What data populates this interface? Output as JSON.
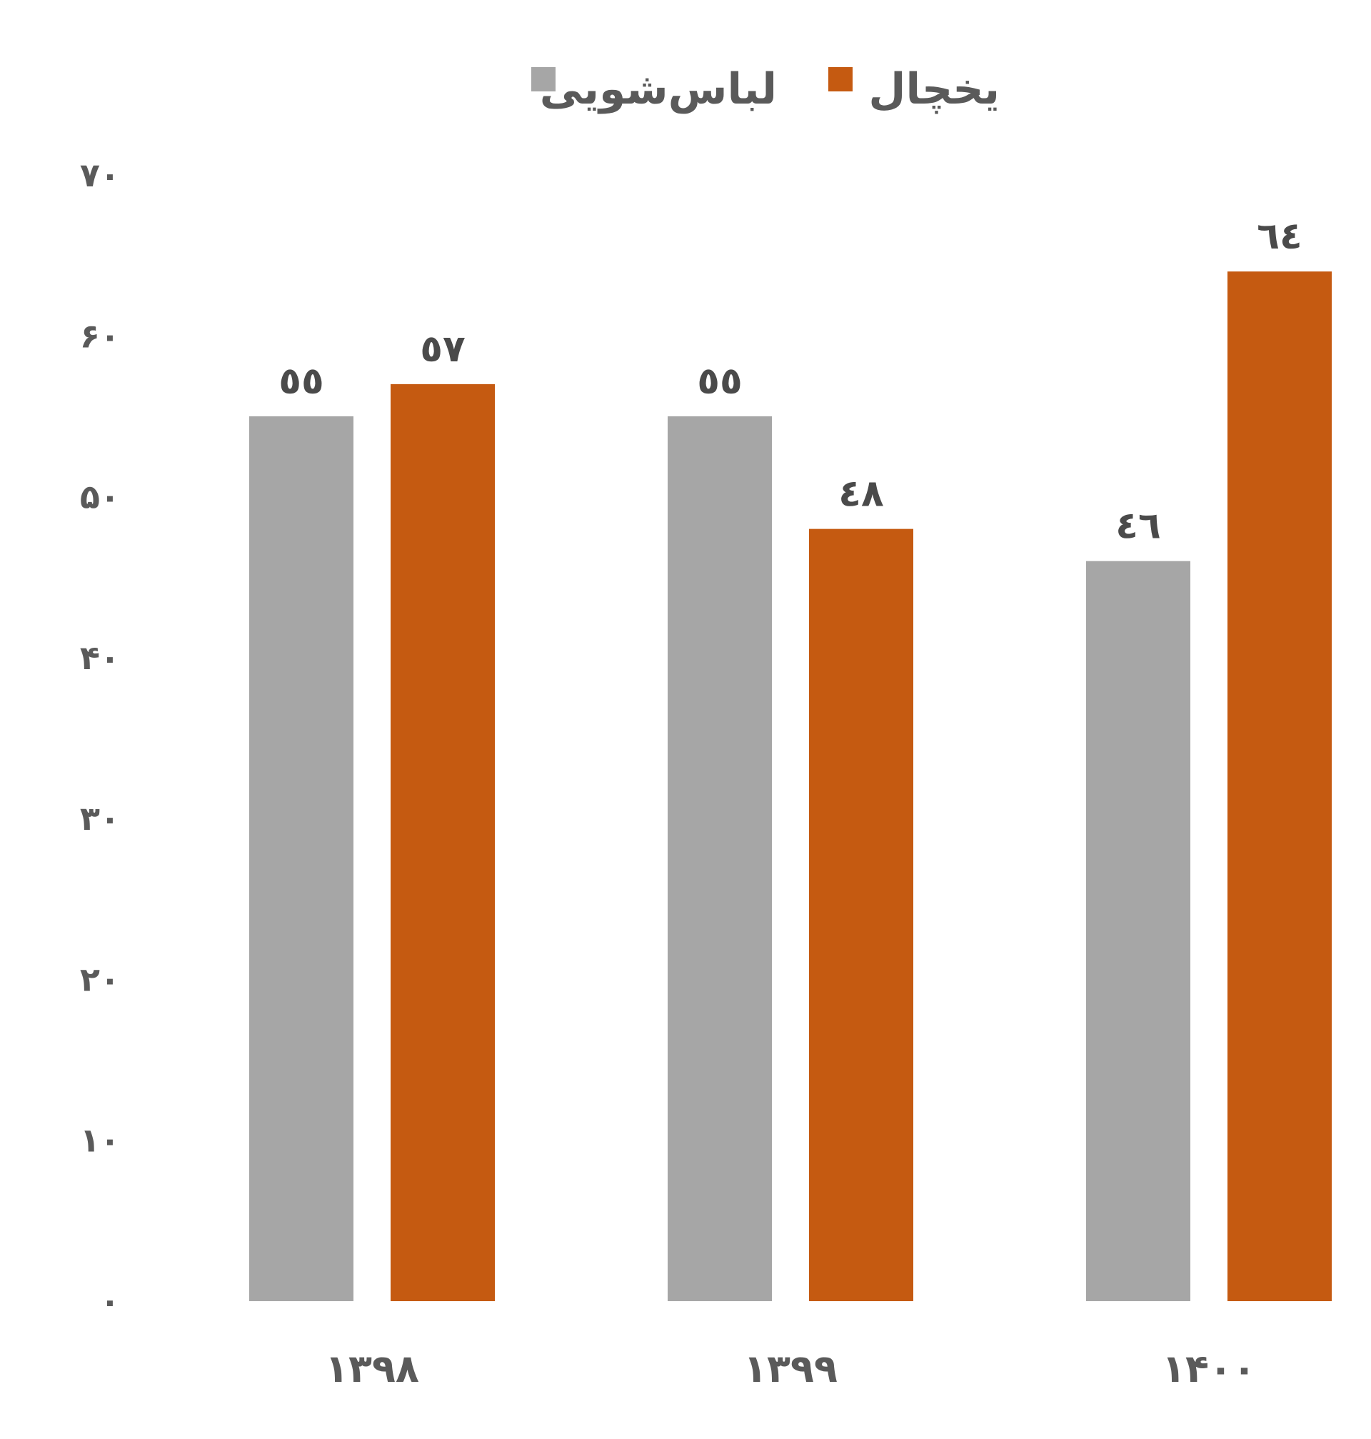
{
  "chart_data": {
    "type": "bar",
    "categories": [
      "۱۳۹۸",
      "۱۳۹۹",
      "۱۴۰۰"
    ],
    "series": [
      {
        "name": "لباس‌شویی",
        "values": [
          55,
          55,
          46
        ],
        "labels": [
          "٥٥",
          "٥٥",
          "٤٦"
        ],
        "color": "#a6a6a6"
      },
      {
        "name": "یخچال",
        "values": [
          57,
          48,
          64
        ],
        "labels": [
          "٥٧",
          "٤٨",
          "٦٤"
        ],
        "color": "#c55a11"
      }
    ],
    "ylim": [
      0,
      70
    ],
    "yticks": [
      0,
      10,
      20,
      30,
      40,
      50,
      60,
      70
    ],
    "ytick_labels": [
      "۰",
      "۱۰",
      "۲۰",
      "۳۰",
      "۴۰",
      "۵۰",
      "۶۰",
      "۷۰"
    ],
    "legend_order": [
      "یخچال",
      "لباس‌شویی"
    ],
    "legend_position": "top-center",
    "grid": false,
    "title": "",
    "xlabel": "",
    "ylabel": ""
  }
}
